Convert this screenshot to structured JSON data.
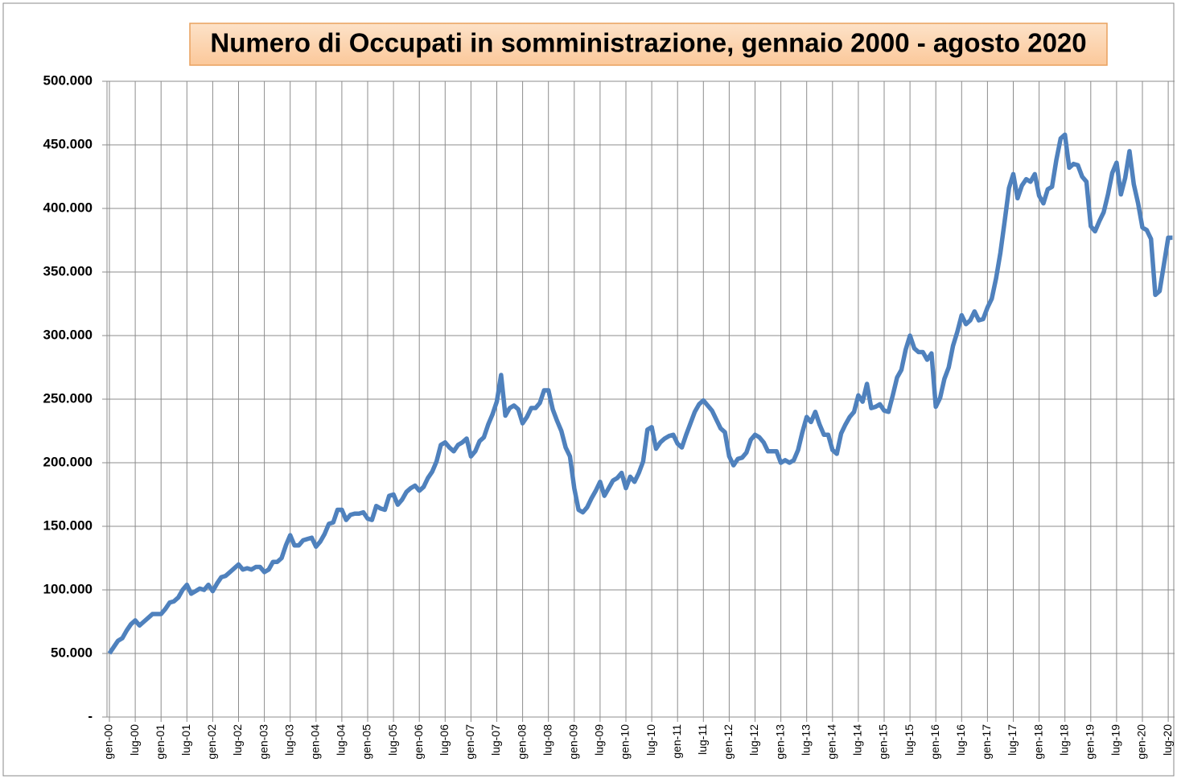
{
  "chart_data": {
    "type": "line",
    "title": "Numero di Occupati in somministrazione, gennaio 2000 - agosto 2020",
    "categories": [
      "gen-00",
      null,
      null,
      null,
      null,
      null,
      "lug-00",
      null,
      null,
      null,
      null,
      null,
      "gen-01",
      null,
      null,
      null,
      null,
      null,
      "lug-01",
      null,
      null,
      null,
      null,
      null,
      "gen-02",
      null,
      null,
      null,
      null,
      null,
      "lug-02",
      null,
      null,
      null,
      null,
      null,
      "gen-03",
      null,
      null,
      null,
      null,
      null,
      "lug-03",
      null,
      null,
      null,
      null,
      null,
      "gen-04",
      null,
      null,
      null,
      null,
      null,
      "lug-04",
      null,
      null,
      null,
      null,
      null,
      "gen-05",
      null,
      null,
      null,
      null,
      null,
      "lug-05",
      null,
      null,
      null,
      null,
      null,
      "gen-06",
      null,
      null,
      null,
      null,
      null,
      "lug-06",
      null,
      null,
      null,
      null,
      null,
      "gen-07",
      null,
      null,
      null,
      null,
      null,
      "lug-07",
      null,
      null,
      null,
      null,
      null,
      "gen-08",
      null,
      null,
      null,
      null,
      null,
      "lug-08",
      null,
      null,
      null,
      null,
      null,
      "gen-09",
      null,
      null,
      null,
      null,
      null,
      "lug-09",
      null,
      null,
      null,
      null,
      null,
      "gen-10",
      null,
      null,
      null,
      null,
      null,
      "lug-10",
      null,
      null,
      null,
      null,
      null,
      "gen-11",
      null,
      null,
      null,
      null,
      null,
      "lug-11",
      null,
      null,
      null,
      null,
      null,
      "gen-12",
      null,
      null,
      null,
      null,
      null,
      "lug-12",
      null,
      null,
      null,
      null,
      null,
      "gen-13",
      null,
      null,
      null,
      null,
      null,
      "lug-13",
      null,
      null,
      null,
      null,
      null,
      "gen-14",
      null,
      null,
      null,
      null,
      null,
      "lug-14",
      null,
      null,
      null,
      null,
      null,
      "gen-15",
      null,
      null,
      null,
      null,
      null,
      "lug-15",
      null,
      null,
      null,
      null,
      null,
      "gen-16",
      null,
      null,
      null,
      null,
      null,
      "lug-16",
      null,
      null,
      null,
      null,
      null,
      "gen-17",
      null,
      null,
      null,
      null,
      null,
      "lug-17",
      null,
      null,
      null,
      null,
      null,
      "gen-18",
      null,
      null,
      null,
      null,
      null,
      "lug-18",
      null,
      null,
      null,
      null,
      null,
      "gen-19",
      null,
      null,
      null,
      null,
      null,
      "lug-19",
      null,
      null,
      null,
      null,
      null,
      "gen-20",
      null,
      null,
      null,
      null,
      null,
      "lug-20",
      null
    ],
    "values": [
      50000,
      55000,
      60000,
      62000,
      68000,
      73000,
      76000,
      72000,
      75000,
      78000,
      81000,
      81000,
      81000,
      85000,
      90000,
      91000,
      94000,
      100000,
      104000,
      97000,
      99000,
      101000,
      100000,
      104000,
      99000,
      105000,
      110000,
      111000,
      114000,
      117000,
      120000,
      116000,
      117000,
      116000,
      118000,
      118000,
      114000,
      116000,
      122000,
      122000,
      125000,
      135000,
      143000,
      135000,
      135000,
      139000,
      140000,
      141000,
      134000,
      138000,
      144000,
      152000,
      153000,
      163000,
      163000,
      155000,
      159000,
      160000,
      160000,
      161000,
      156000,
      155000,
      166000,
      164000,
      163000,
      174000,
      175000,
      167000,
      171000,
      177000,
      180000,
      182000,
      178000,
      181000,
      188000,
      193000,
      201000,
      214000,
      216000,
      212000,
      209000,
      214000,
      216000,
      219000,
      205000,
      209000,
      217000,
      220000,
      230000,
      238000,
      248000,
      269000,
      237000,
      243000,
      245000,
      242000,
      231000,
      236000,
      243000,
      243000,
      247000,
      257000,
      257000,
      242000,
      233000,
      225000,
      212000,
      205000,
      180000,
      163000,
      161000,
      165000,
      172000,
      178000,
      185000,
      174000,
      180000,
      186000,
      188000,
      192000,
      180000,
      189000,
      185000,
      192000,
      201000,
      226000,
      228000,
      211000,
      216000,
      219000,
      221000,
      222000,
      215000,
      212000,
      222000,
      231000,
      240000,
      246000,
      249000,
      245000,
      241000,
      234000,
      227000,
      224000,
      205000,
      198000,
      203000,
      204000,
      208000,
      218000,
      222000,
      220000,
      216000,
      209000,
      209000,
      209000,
      200000,
      202000,
      200000,
      202000,
      210000,
      224000,
      236000,
      232000,
      240000,
      230000,
      222000,
      222000,
      210000,
      207000,
      223000,
      230000,
      236000,
      240000,
      253000,
      248000,
      262000,
      243000,
      244000,
      246000,
      241000,
      240000,
      253000,
      267000,
      273000,
      289000,
      300000,
      290000,
      287000,
      287000,
      281000,
      286000,
      244000,
      251000,
      266000,
      275000,
      292000,
      303000,
      316000,
      309000,
      312000,
      319000,
      312000,
      313000,
      322000,
      329000,
      345000,
      365000,
      390000,
      416000,
      427000,
      408000,
      418000,
      423000,
      421000,
      427000,
      410000,
      404000,
      415000,
      417000,
      438000,
      455000,
      458000,
      432000,
      435000,
      434000,
      425000,
      421000,
      386000,
      382000,
      390000,
      397000,
      411000,
      428000,
      436000,
      411000,
      424000,
      445000,
      419000,
      404000,
      385000,
      383000,
      376000,
      332000,
      335000,
      356000,
      377000,
      377000
    ],
    "color": "#4f81bd",
    "ylim": [
      0,
      500000
    ],
    "yticks": [
      {
        "value": 0,
        "label": "-"
      },
      {
        "value": 50000,
        "label": "50.000"
      },
      {
        "value": 100000,
        "label": "100.000"
      },
      {
        "value": 150000,
        "label": "150.000"
      },
      {
        "value": 200000,
        "label": "200.000"
      },
      {
        "value": 250000,
        "label": "250.000"
      },
      {
        "value": 300000,
        "label": "300.000"
      },
      {
        "value": 350000,
        "label": "350.000"
      },
      {
        "value": 400000,
        "label": "400.000"
      },
      {
        "value": 450000,
        "label": "450.000"
      },
      {
        "value": 500000,
        "label": "500.000"
      }
    ],
    "grid": true
  }
}
